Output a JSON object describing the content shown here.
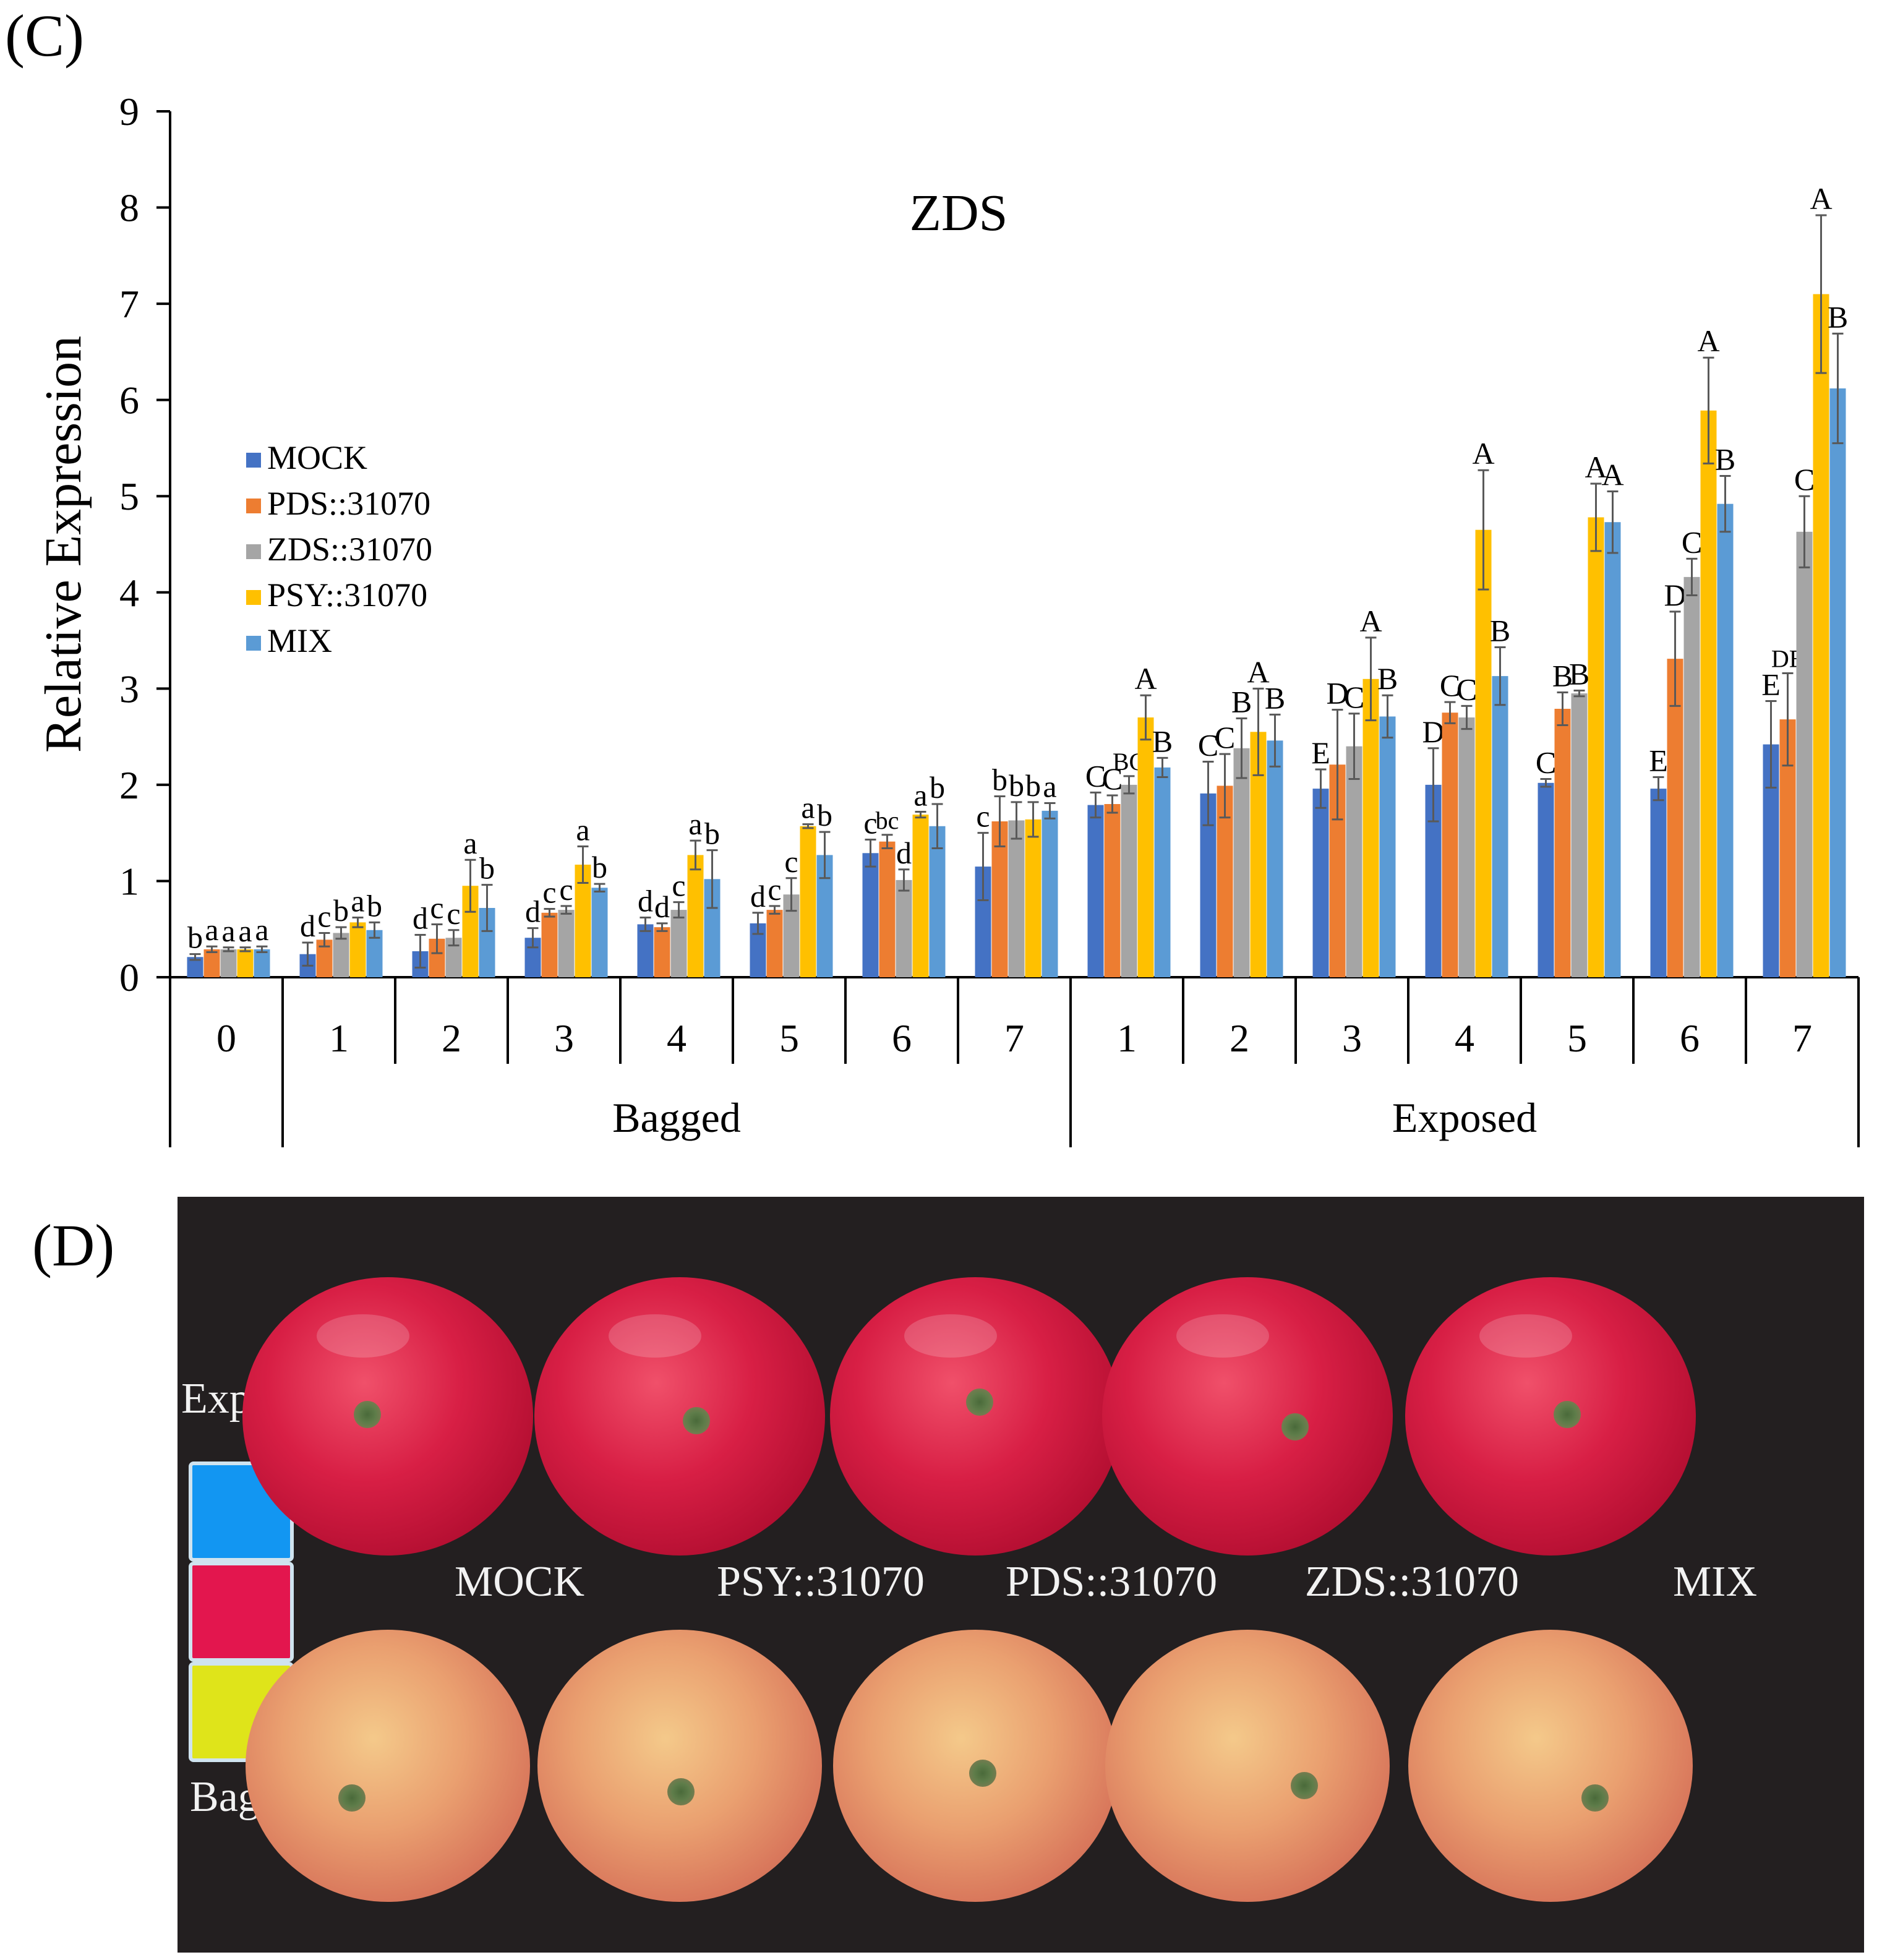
{
  "panel_c_label": "(C)",
  "panel_d_label": "(D)",
  "chart_data": {
    "type": "bar",
    "title": "ZDS",
    "ylabel": "Relative Expression",
    "ylim": [
      0,
      9
    ],
    "yticks": [
      "0",
      "1",
      "2",
      "3",
      "4",
      "5",
      "6",
      "7",
      "8",
      "9"
    ],
    "groups": [
      {
        "label": "Bagged",
        "start": 1,
        "end": 7
      },
      {
        "label": "Exposed",
        "start": 8,
        "end": 14
      }
    ],
    "categories": [
      "0",
      "1",
      "2",
      "3",
      "4",
      "5",
      "6",
      "7",
      "1",
      "2",
      "3",
      "4",
      "5",
      "6",
      "7"
    ],
    "series": [
      {
        "name": "MOCK",
        "color": "#4472c4",
        "values": [
          0.21,
          0.24,
          0.27,
          0.41,
          0.55,
          0.56,
          1.29,
          1.15,
          1.79,
          1.91,
          1.96,
          2.0,
          2.02,
          1.96,
          2.42
        ],
        "errors": [
          0.03,
          0.12,
          0.17,
          0.1,
          0.07,
          0.11,
          0.14,
          0.35,
          0.13,
          0.33,
          0.2,
          0.38,
          0.04,
          0.12,
          0.45
        ],
        "letters": [
          "b",
          "d",
          "d",
          "d",
          "d",
          "d",
          "c",
          "c",
          "C",
          "C",
          "E",
          "D",
          "C",
          "E",
          "E"
        ]
      },
      {
        "name": "PDS::31070",
        "color": "#ed7d31",
        "values": [
          0.29,
          0.39,
          0.4,
          0.67,
          0.52,
          0.7,
          1.41,
          1.62,
          1.8,
          1.99,
          2.21,
          2.75,
          2.79,
          3.31,
          2.68
        ],
        "errors": [
          0.03,
          0.07,
          0.15,
          0.04,
          0.04,
          0.04,
          0.07,
          0.26,
          0.09,
          0.33,
          0.57,
          0.11,
          0.17,
          0.49,
          0.48
        ],
        "letters": [
          "a",
          "c",
          "c",
          "c",
          "d",
          "c",
          "bc",
          "b",
          "C",
          "C",
          "D",
          "C",
          "B",
          "D",
          "DE"
        ]
      },
      {
        "name": "ZDS::31070",
        "color": "#a5a5a5",
        "values": [
          0.29,
          0.46,
          0.41,
          0.7,
          0.7,
          0.86,
          1.01,
          1.63,
          2.0,
          2.38,
          2.4,
          2.7,
          2.95,
          4.16,
          4.63
        ],
        "errors": [
          0.02,
          0.06,
          0.08,
          0.04,
          0.08,
          0.17,
          0.11,
          0.19,
          0.09,
          0.31,
          0.34,
          0.12,
          0.03,
          0.19,
          0.37
        ],
        "letters": [
          "a",
          "b",
          "c",
          "c",
          "c",
          "c",
          "d",
          "b",
          "BC",
          "B",
          "C",
          "C",
          "B",
          "C",
          "C"
        ]
      },
      {
        "name": "PSY::31070",
        "color": "#ffc000",
        "values": [
          0.29,
          0.57,
          0.95,
          1.17,
          1.27,
          1.57,
          1.69,
          1.64,
          2.7,
          2.55,
          3.1,
          4.65,
          4.78,
          5.89,
          7.1
        ],
        "errors": [
          0.02,
          0.05,
          0.27,
          0.19,
          0.15,
          0.02,
          0.03,
          0.18,
          0.23,
          0.45,
          0.43,
          0.62,
          0.35,
          0.55,
          0.82
        ],
        "letters": [
          "a",
          "a",
          "a",
          "a",
          "a",
          "a",
          "a",
          "b",
          "A",
          "A",
          "A",
          "A",
          "A",
          "A",
          "A"
        ]
      },
      {
        "name": "MIX",
        "color": "#5b9bd5",
        "values": [
          0.29,
          0.49,
          0.72,
          0.93,
          1.02,
          1.27,
          1.57,
          1.73,
          2.18,
          2.46,
          2.71,
          3.13,
          4.73,
          4.92,
          6.12
        ],
        "errors": [
          0.03,
          0.08,
          0.24,
          0.04,
          0.3,
          0.24,
          0.23,
          0.08,
          0.1,
          0.27,
          0.22,
          0.3,
          0.32,
          0.29,
          0.57
        ],
        "letters": [
          "a",
          "b",
          "b",
          "b",
          "b",
          "b",
          "b",
          "a",
          "B",
          "B",
          "B",
          "B",
          "A",
          "B",
          "B"
        ]
      }
    ]
  },
  "photo": {
    "row_exposed": "Exposed",
    "row_bagged": "Bagged",
    "apple_labels": [
      "MOCK",
      "PSY::31070",
      "PDS::31070",
      "ZDS::31070",
      "MIX"
    ],
    "swatch_colors": [
      "#1296f2",
      "#e3164e",
      "#dfe41a"
    ]
  }
}
